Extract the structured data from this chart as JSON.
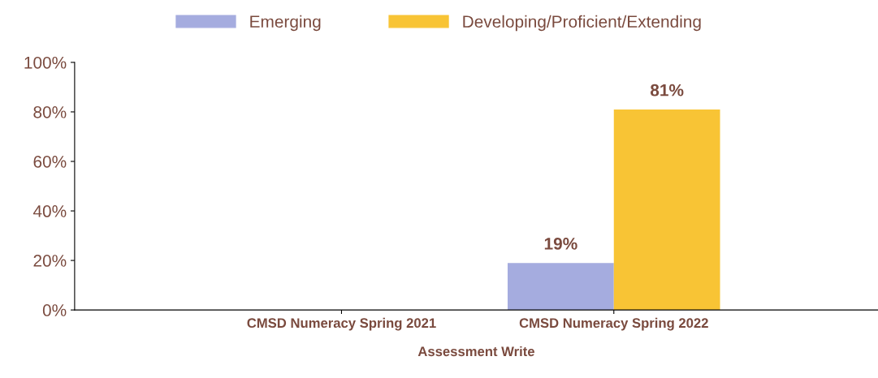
{
  "chart_data": {
    "type": "bar",
    "xlabel": "Assessment Write",
    "categories": [
      "CMSD Numeracy Spring 2021",
      "CMSD Numeracy Spring 2022"
    ],
    "series": [
      {
        "name": "Emerging",
        "color": "#a5acdf",
        "values": [
          null,
          19
        ],
        "value_labels": [
          null,
          "19%"
        ]
      },
      {
        "name": "Developing/Proficient/Extending",
        "color": "#f8c435",
        "values": [
          null,
          81
        ],
        "value_labels": [
          null,
          "81%"
        ]
      }
    ],
    "ylim": [
      0,
      100
    ],
    "yticks": [
      {
        "value": 0,
        "label": "0%"
      },
      {
        "value": 20,
        "label": "20%"
      },
      {
        "value": 40,
        "label": "40%"
      },
      {
        "value": 60,
        "label": "60%"
      },
      {
        "value": 80,
        "label": "80%"
      },
      {
        "value": 100,
        "label": "100%"
      }
    ],
    "legend": "top",
    "grid": false
  }
}
